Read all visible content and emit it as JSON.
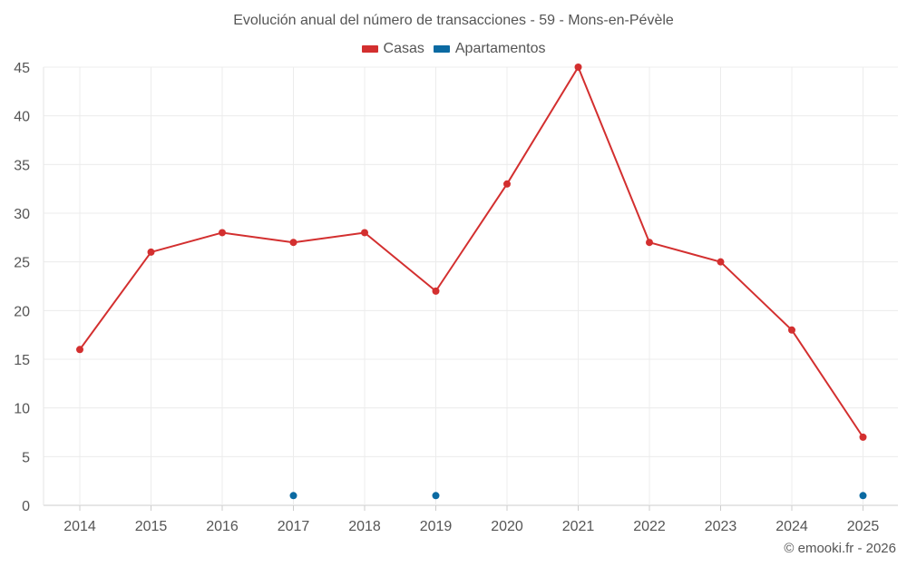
{
  "chart_data": {
    "type": "line",
    "title": "Evolución anual del número de transacciones - 59 - Mons-en-Pévèle",
    "xlabel": "",
    "ylabel": "",
    "categories": [
      "2014",
      "2015",
      "2016",
      "2017",
      "2018",
      "2019",
      "2020",
      "2021",
      "2022",
      "2023",
      "2024",
      "2025"
    ],
    "ylim": [
      0,
      45
    ],
    "yticks": [
      0,
      5,
      10,
      15,
      20,
      25,
      30,
      35,
      40,
      45
    ],
    "grid": true,
    "legend_position": "top-center",
    "series": [
      {
        "name": "Casas",
        "color": "#d32f2f",
        "values": [
          16,
          26,
          28,
          27,
          28,
          22,
          33,
          45,
          27,
          25,
          18,
          7
        ]
      },
      {
        "name": "Apartamentos",
        "color": "#0b6aa2",
        "values": [
          null,
          null,
          null,
          1,
          null,
          1,
          null,
          null,
          null,
          null,
          null,
          1
        ]
      }
    ]
  },
  "credit": "© emooki.fr - 2026"
}
